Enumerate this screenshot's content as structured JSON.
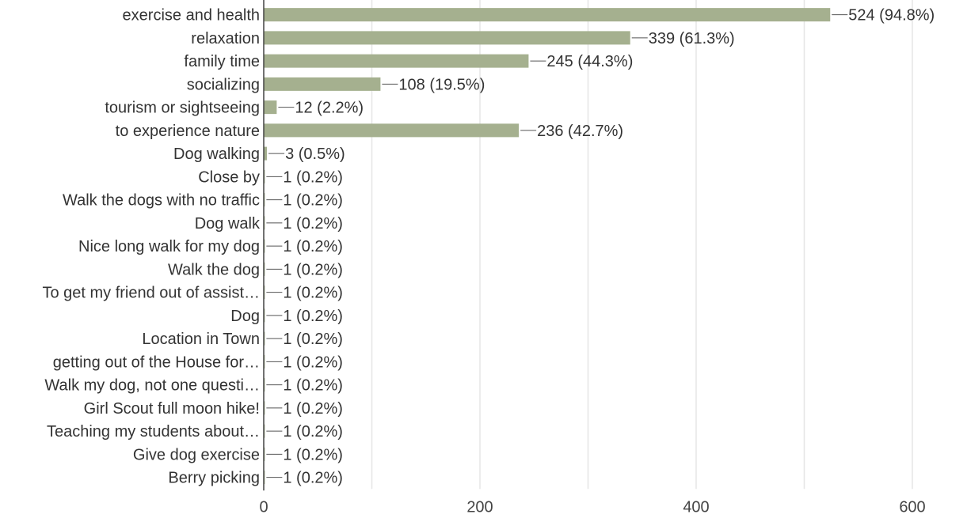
{
  "chart_data": {
    "type": "bar",
    "orientation": "horizontal",
    "categories": [
      "exercise and health",
      "relaxation",
      "family time",
      "socializing",
      "tourism or sightseeing",
      "to experience nature",
      "Dog walking",
      "Close by",
      "Walk the dogs with no traffic",
      "Dog walk",
      "Nice long walk for my dog",
      "Walk the dog",
      "To get my friend out of assist…",
      "Dog",
      "Location in Town",
      "getting out of the House for…",
      "Walk my dog, not one questi…",
      "Girl Scout full moon hike!",
      "Teaching my students about…",
      "Give dog exercise",
      "Berry picking"
    ],
    "values": [
      524,
      339,
      245,
      108,
      12,
      236,
      3,
      1,
      1,
      1,
      1,
      1,
      1,
      1,
      1,
      1,
      1,
      1,
      1,
      1,
      1
    ],
    "data_labels": [
      "524 (94.8%)",
      "339 (61.3%)",
      "245 (44.3%)",
      "108 (19.5%)",
      "12 (2.2%)",
      "236 (42.7%)",
      "3 (0.5%)",
      "1 (0.2%)",
      "1 (0.2%)",
      "1 (0.2%)",
      "1 (0.2%)",
      "1 (0.2%)",
      "1 (0.2%)",
      "1 (0.2%)",
      "1 (0.2%)",
      "1 (0.2%)",
      "1 (0.2%)",
      "1 (0.2%)",
      "1 (0.2%)",
      "1 (0.2%)",
      "1 (0.2%)"
    ],
    "xlim": [
      0,
      600
    ],
    "x_ticks": [
      0,
      200,
      400,
      600
    ],
    "gridlines_at": [
      100,
      200,
      300,
      400,
      500,
      600
    ],
    "grid": true,
    "title": "",
    "xlabel": "",
    "ylabel": "",
    "colors": {
      "bar": "#a5b08f",
      "grid": "#e6e6e6",
      "axis": "#444444",
      "text": "#333333"
    }
  }
}
